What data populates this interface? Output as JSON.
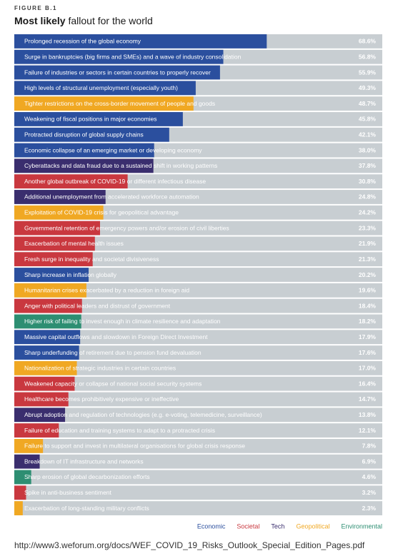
{
  "chart_data": {
    "type": "bar",
    "figure_label": "FIGURE B.1",
    "title_parts": [
      "Most likely",
      "fallout for the world"
    ],
    "source": "http://www3.weforum.org/docs/WEF_COVID_19_Risks_Outlook_Special_Edition_Pages.pdf",
    "xlim": [
      0,
      100
    ],
    "background_color": "#c8ced2",
    "categories": [
      "Prolonged recession of the global economy",
      "Surge in bankruptcies (big firms and SMEs) and a wave of industry consolidation",
      "Failure of industries or sectors in certain countries to properly recover",
      "High levels of structural unemployment (especially youth)",
      "Tighter restrictions on the cross-border movement of people and goods",
      "Weakening of fiscal positions in major economies",
      "Protracted disruption of global supply chains",
      "Economic collapse of an emerging market or developing economy",
      "Cyberattacks and data fraud due to a sustained shift in working patterns",
      "Another global outbreak of COVID-19 or different infectious disease",
      "Additional unemployment from accelerated workforce automation",
      "Exploitation of COVID-19 crisis for geopolitical advantage",
      "Governmental retention of emergency powers and/or erosion of civil liberties",
      "Exacerbation of mental health issues",
      "Fresh surge in inequality and societal divisiveness",
      "Sharp increase in inflation globally",
      "Humanitarian crises exacerbated by a reduction in foreign aid",
      "Anger with political leaders and distrust of government",
      "Higher risk of failing to invest enough in climate resilience and adaptation",
      "Massive capital outflows and slowdown in Foreign Direct Investment",
      "Sharp underfunding of retirement due to pension fund devaluation",
      "Nationalization of strategic industries in certain countries",
      "Weakened capacity or collapse of national social security systems",
      "Healthcare becomes prohibitively expensive or ineffective",
      "Abrupt adoption and regulation of technologies (e.g. e-voting, telemedicine, surveillance)",
      "Failure of education and training systems to adapt to a protracted crisis",
      "Failure to support and invest in multilateral organisations for global crisis response",
      "Breakdown of IT infrastructure and networks",
      "Sharp erosion of global decarbonization efforts",
      "Spike in anti-business sentiment",
      "Exacerbation of long-standing military conflicts"
    ],
    "series": [
      {
        "name": "Economic",
        "color": "#2b4f9e",
        "values": [
          68.6,
          56.8,
          55.9,
          49.3,
          null,
          45.8,
          42.1,
          38.0,
          null,
          null,
          null,
          null,
          null,
          null,
          null,
          20.2,
          null,
          null,
          null,
          17.9,
          17.6,
          null,
          null,
          null,
          null,
          null,
          null,
          null,
          null,
          null,
          null
        ],
        "value_labels": [
          "68.6%",
          "56.8%",
          "55.9%",
          "49.3%",
          null,
          "45.8%",
          "42.1%",
          "38.0%",
          null,
          null,
          null,
          null,
          null,
          null,
          null,
          "20.2%",
          null,
          null,
          null,
          "17.9%",
          "17.6%",
          null,
          null,
          null,
          null,
          null,
          null,
          null,
          null,
          null,
          null
        ]
      },
      {
        "name": "Societal",
        "color": "#c9383f",
        "values": [
          null,
          null,
          null,
          null,
          null,
          null,
          null,
          null,
          null,
          30.8,
          null,
          null,
          23.3,
          21.9,
          21.3,
          null,
          null,
          18.4,
          null,
          null,
          null,
          null,
          16.4,
          14.7,
          null,
          12.1,
          null,
          null,
          null,
          3.2,
          null
        ],
        "value_labels": [
          null,
          null,
          null,
          null,
          null,
          null,
          null,
          null,
          null,
          "30.8%",
          null,
          null,
          "23.3%",
          "21.9%",
          "21.3%",
          null,
          null,
          "18.4%",
          null,
          null,
          null,
          null,
          "16.4%",
          "14.7%",
          null,
          "12.1%",
          null,
          null,
          null,
          "3.2%",
          null
        ]
      },
      {
        "name": "Tech",
        "color": "#3a2e6e",
        "values": [
          null,
          null,
          null,
          null,
          null,
          null,
          null,
          null,
          37.8,
          null,
          24.8,
          null,
          null,
          null,
          null,
          null,
          null,
          null,
          null,
          null,
          null,
          null,
          null,
          null,
          13.8,
          null,
          null,
          6.9,
          null,
          null,
          null
        ],
        "value_labels": [
          null,
          null,
          null,
          null,
          null,
          null,
          null,
          null,
          "37.8%",
          null,
          "24.8%",
          null,
          null,
          null,
          null,
          null,
          null,
          null,
          null,
          null,
          null,
          null,
          null,
          null,
          "13.8%",
          null,
          null,
          "6.9%",
          null,
          null,
          null
        ]
      },
      {
        "name": "Geopolitical",
        "color": "#f0a823",
        "values": [
          null,
          null,
          null,
          null,
          48.7,
          null,
          null,
          null,
          null,
          null,
          null,
          24.2,
          null,
          null,
          null,
          null,
          19.6,
          null,
          null,
          null,
          null,
          17.0,
          null,
          null,
          null,
          null,
          7.8,
          null,
          null,
          null,
          2.3
        ],
        "value_labels": [
          null,
          null,
          null,
          null,
          "48.7%",
          null,
          null,
          null,
          null,
          null,
          null,
          "24.2%",
          null,
          null,
          null,
          null,
          "19.6%",
          null,
          null,
          null,
          null,
          "17.0%",
          null,
          null,
          null,
          null,
          "7.8%",
          null,
          null,
          null,
          "2.3%"
        ]
      },
      {
        "name": "Environmental",
        "color": "#2d8e72",
        "values": [
          null,
          null,
          null,
          null,
          null,
          null,
          null,
          null,
          null,
          null,
          null,
          null,
          null,
          null,
          null,
          null,
          null,
          null,
          18.2,
          null,
          null,
          null,
          null,
          null,
          null,
          null,
          null,
          null,
          4.6,
          null,
          null
        ],
        "value_labels": [
          null,
          null,
          null,
          null,
          null,
          null,
          null,
          null,
          null,
          null,
          null,
          null,
          null,
          null,
          null,
          null,
          null,
          null,
          "18.2%",
          null,
          null,
          null,
          null,
          null,
          null,
          null,
          null,
          null,
          "4.6%",
          null,
          null
        ]
      }
    ]
  }
}
